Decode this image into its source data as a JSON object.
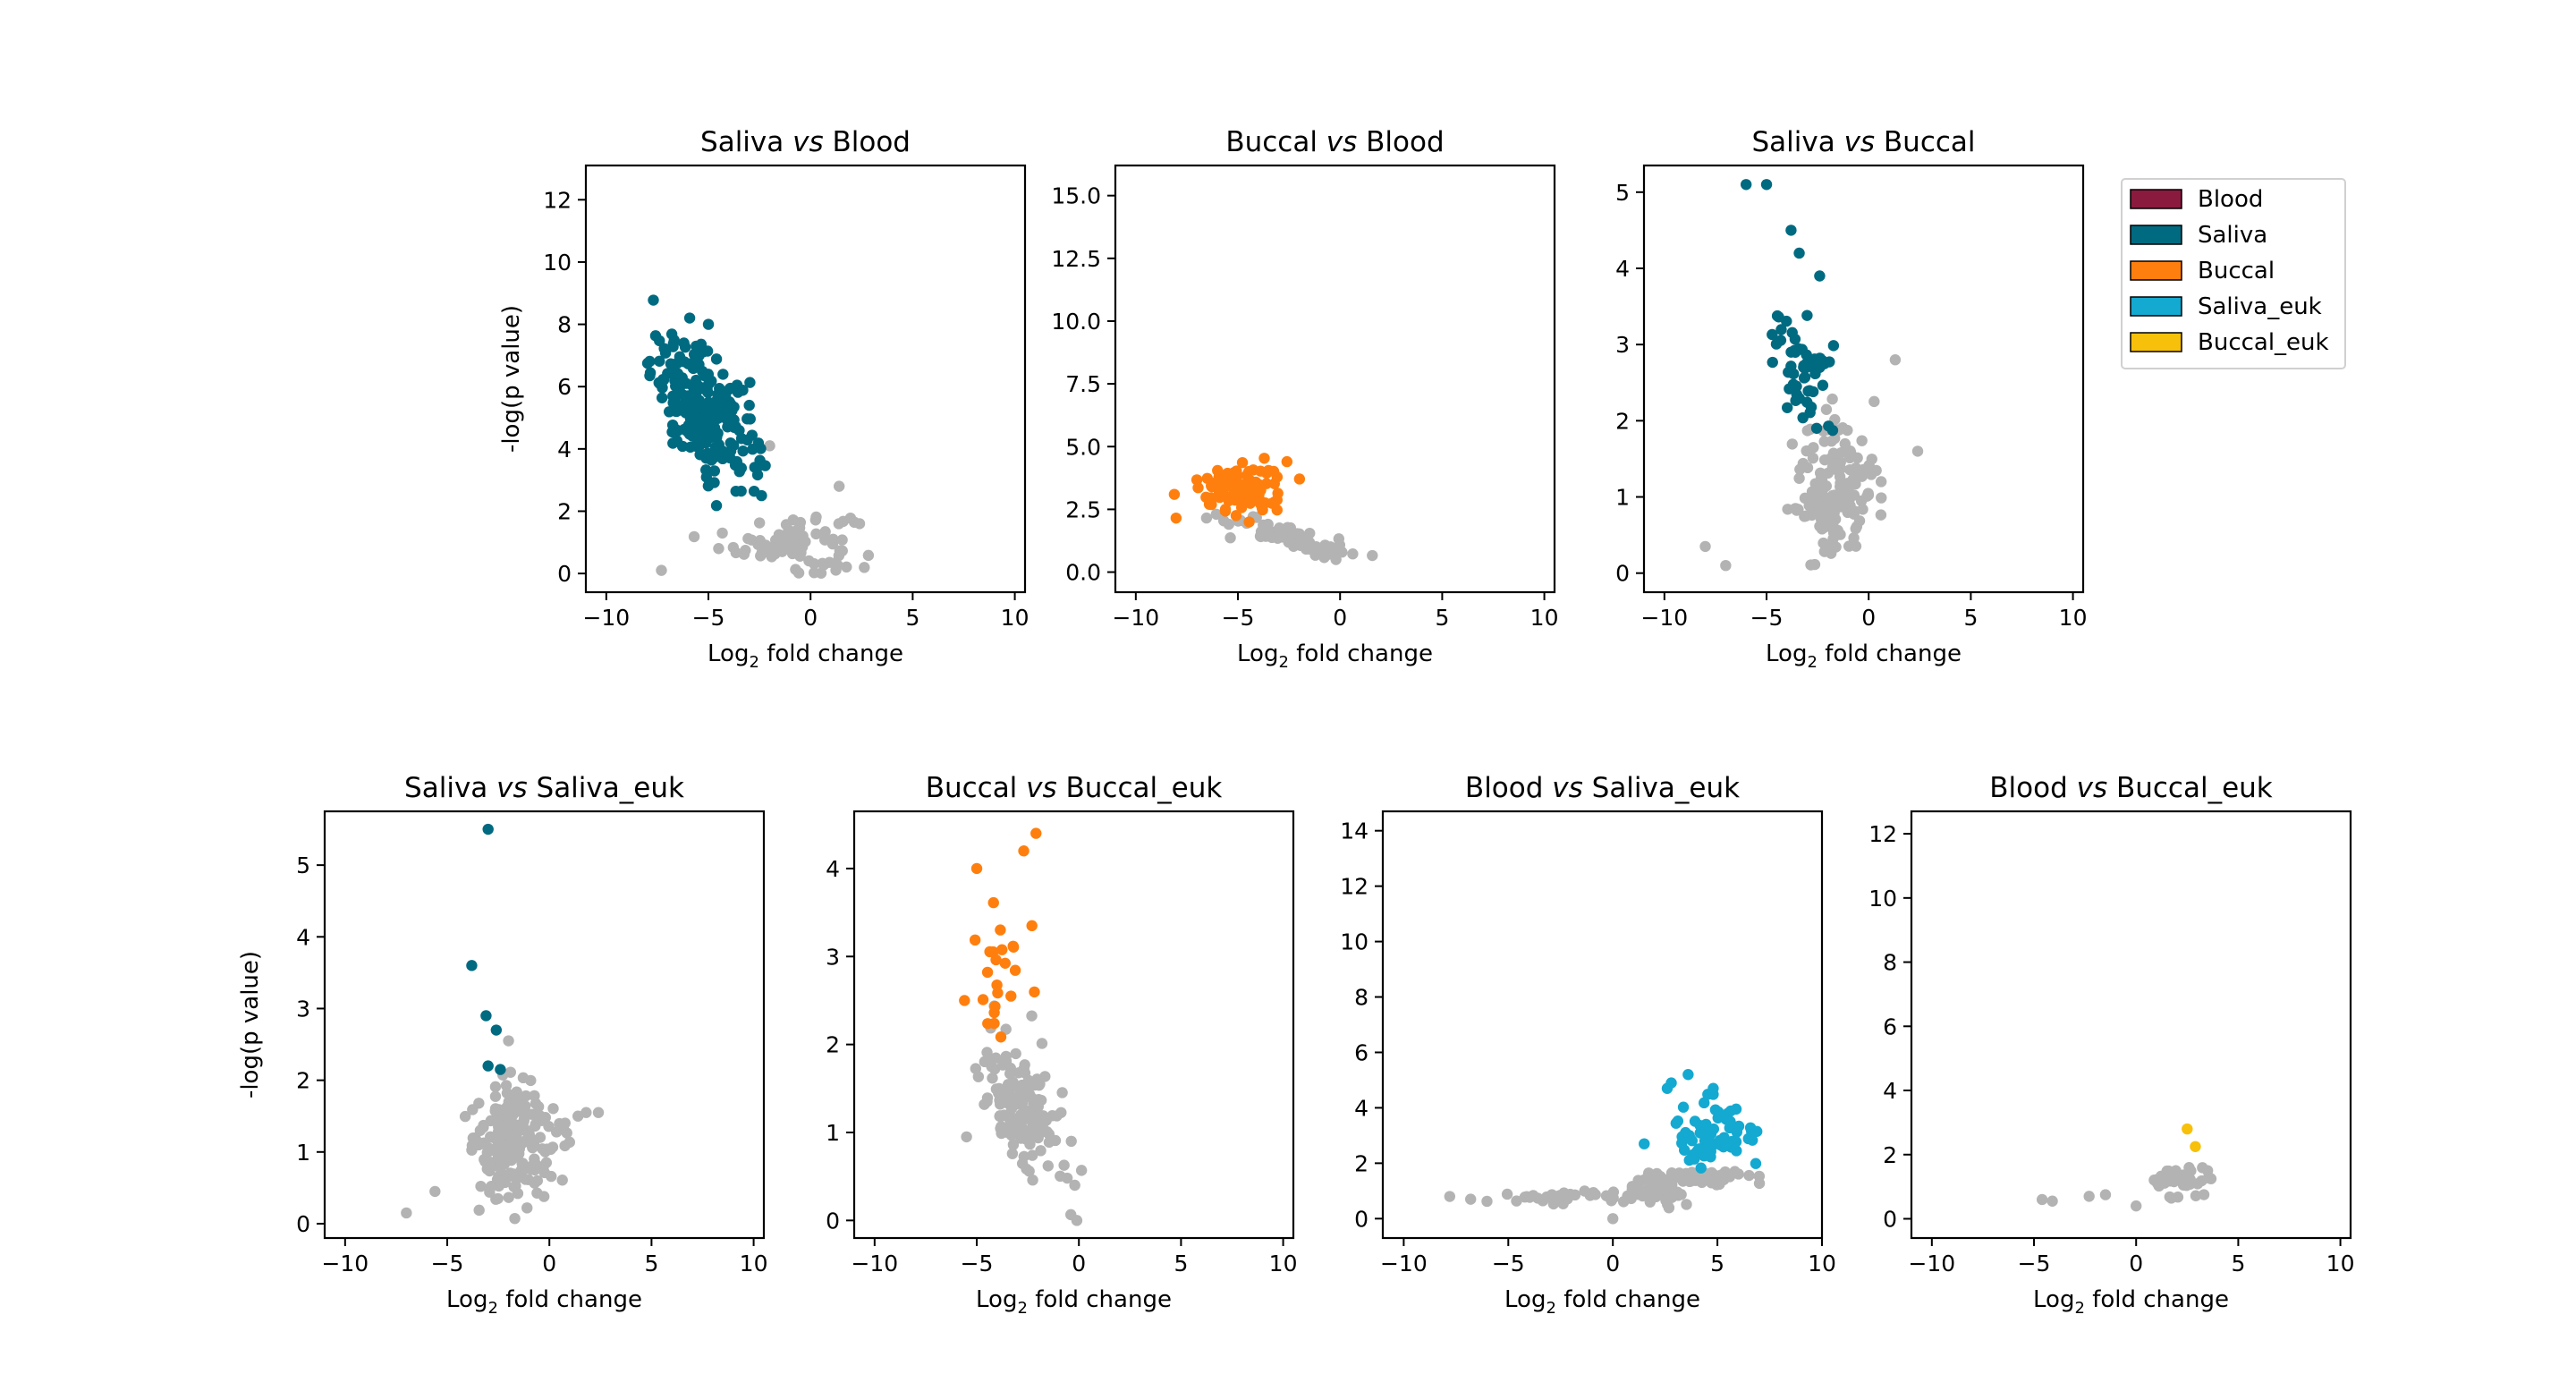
{
  "figure": {
    "xlabel_main": "Log",
    "xlabel_sub": "2",
    "xlabel_rest": " fold change",
    "ylabel": "-log(p value)",
    "vs_word": "vs"
  },
  "legend": {
    "placement": "right of top row",
    "entries": [
      {
        "label": "Blood",
        "color": "#8b1a3f"
      },
      {
        "label": "Saliva",
        "color": "#006a80"
      },
      {
        "label": "Buccal",
        "color": "#ff7f0e"
      },
      {
        "label": "Saliva_euk",
        "color": "#14a9d0"
      },
      {
        "label": "Buccal_euk",
        "color": "#f7c00a"
      }
    ]
  },
  "colors": {
    "nonsig": "#b3b3b3"
  },
  "chart_data": [
    {
      "type": "scatter",
      "title_left": "Saliva",
      "title_right": "Blood",
      "xlabel": "Log2 fold change",
      "ylabel": "-log(p value)",
      "xlim": [
        -11,
        10.5
      ],
      "ylim": [
        -0.6,
        13.1
      ],
      "xticks": [
        -10,
        -5,
        0,
        5,
        10
      ],
      "yticks": [
        0,
        2,
        4,
        6,
        8,
        10,
        12
      ],
      "sig_color": "#006a80",
      "clusters": [
        {
          "group": "sig",
          "cx": -5.2,
          "cy": 5.2,
          "sx": 1.3,
          "sy": 0.9,
          "n": 230,
          "tilt": -0.45
        },
        {
          "group": "nonsig",
          "cx": -0.8,
          "cy": 1.0,
          "sx": 1.4,
          "sy": 0.5,
          "n": 90,
          "tilt": 0
        }
      ],
      "points": [
        {
          "x": -5.0,
          "y": 8.0,
          "group": "sig"
        },
        {
          "x": -6.2,
          "y": 7.4,
          "group": "sig"
        },
        {
          "x": -5.6,
          "y": 7.3,
          "group": "sig"
        },
        {
          "x": -3.0,
          "y": 5.4,
          "group": "sig"
        },
        {
          "x": -2.4,
          "y": 2.5,
          "group": "sig"
        },
        {
          "x": -2.0,
          "y": 4.1,
          "group": "nonsig"
        },
        {
          "x": 1.4,
          "y": 2.8,
          "group": "nonsig"
        },
        {
          "x": 2.4,
          "y": 1.6,
          "group": "nonsig"
        },
        {
          "x": -4.5,
          "y": 0.8,
          "group": "nonsig"
        },
        {
          "x": -7.3,
          "y": 0.1,
          "group": "nonsig"
        }
      ]
    },
    {
      "type": "scatter",
      "title_left": "Buccal",
      "title_right": "Blood",
      "xlabel": "Log2 fold change",
      "ylabel": "",
      "xlim": [
        -11,
        10.5
      ],
      "ylim": [
        -0.8,
        16.2
      ],
      "xticks": [
        -10,
        -5,
        0,
        5,
        10
      ],
      "yticks": [
        0.0,
        2.5,
        5.0,
        7.5,
        10.0,
        12.5,
        15.0
      ],
      "ytick_labels": [
        "0.0",
        "2.5",
        "5.0",
        "7.5",
        "10.0",
        "12.5",
        "15.0"
      ],
      "sig_color": "#ff7f0e",
      "clusters": [
        {
          "group": "sig",
          "cx": -4.8,
          "cy": 3.3,
          "sx": 1.0,
          "sy": 0.5,
          "n": 110,
          "tilt": 0
        },
        {
          "group": "nonsig",
          "cx": -2.5,
          "cy": 1.4,
          "sx": 1.6,
          "sy": 0.25,
          "n": 60,
          "tilt": -0.25
        }
      ],
      "points": [
        {
          "x": -2.6,
          "y": 4.4,
          "group": "sig"
        },
        {
          "x": -6.4,
          "y": 2.7,
          "group": "sig"
        },
        {
          "x": -0.2,
          "y": 0.5,
          "group": "nonsig"
        },
        {
          "x": -0.6,
          "y": 0.7,
          "group": "nonsig"
        }
      ]
    },
    {
      "type": "scatter",
      "title_left": "Saliva",
      "title_right": "Buccal",
      "xlabel": "Log2 fold change",
      "ylabel": "",
      "xlim": [
        -11,
        10.5
      ],
      "ylim": [
        -0.25,
        5.35
      ],
      "xticks": [
        -10,
        -5,
        0,
        5,
        10
      ],
      "yticks": [
        0,
        1,
        2,
        3,
        4,
        5
      ],
      "sig_color": "#006a80",
      "clusters": [
        {
          "group": "sig",
          "cx": -3.3,
          "cy": 2.6,
          "sx": 0.8,
          "sy": 0.4,
          "n": 55,
          "tilt": 0
        },
        {
          "group": "nonsig",
          "cx": -1.6,
          "cy": 1.1,
          "sx": 1.0,
          "sy": 0.45,
          "n": 170,
          "tilt": 0
        }
      ],
      "points": [
        {
          "x": -6.0,
          "y": 5.1,
          "group": "sig"
        },
        {
          "x": -5.0,
          "y": 5.1,
          "group": "sig"
        },
        {
          "x": -3.8,
          "y": 4.5,
          "group": "sig"
        },
        {
          "x": -3.4,
          "y": 4.2,
          "group": "sig"
        },
        {
          "x": -2.4,
          "y": 3.9,
          "group": "sig"
        },
        {
          "x": 1.3,
          "y": 2.8,
          "group": "nonsig"
        },
        {
          "x": 2.4,
          "y": 1.6,
          "group": "nonsig"
        },
        {
          "x": -8.0,
          "y": 0.35,
          "group": "nonsig"
        },
        {
          "x": -7.0,
          "y": 0.1,
          "group": "nonsig"
        }
      ]
    },
    {
      "type": "scatter",
      "title_left": "Saliva",
      "title_right": "Saliva_euk",
      "xlabel": "Log2 fold change",
      "ylabel": "-log(p value)",
      "xlim": [
        -11,
        10.5
      ],
      "ylim": [
        -0.2,
        5.75
      ],
      "xticks": [
        -10,
        -5,
        0,
        5,
        10
      ],
      "yticks": [
        0,
        1,
        2,
        3,
        4,
        5
      ],
      "sig_color": "#006a80",
      "clusters": [
        {
          "group": "nonsig",
          "cx": -1.8,
          "cy": 1.1,
          "sx": 1.0,
          "sy": 0.4,
          "n": 220,
          "tilt": 0
        }
      ],
      "points": [
        {
          "x": -3.0,
          "y": 5.5,
          "group": "sig"
        },
        {
          "x": -3.8,
          "y": 3.6,
          "group": "sig"
        },
        {
          "x": -3.1,
          "y": 2.9,
          "group": "sig"
        },
        {
          "x": -2.6,
          "y": 2.7,
          "group": "sig"
        },
        {
          "x": -3.0,
          "y": 2.2,
          "group": "sig"
        },
        {
          "x": -2.4,
          "y": 2.15,
          "group": "sig"
        },
        {
          "x": -2.0,
          "y": 2.55,
          "group": "nonsig"
        },
        {
          "x": 1.8,
          "y": 1.55,
          "group": "nonsig"
        },
        {
          "x": 2.4,
          "y": 1.55,
          "group": "nonsig"
        },
        {
          "x": 1.4,
          "y": 1.5,
          "group": "nonsig"
        },
        {
          "x": -7.0,
          "y": 0.15,
          "group": "nonsig"
        },
        {
          "x": -5.6,
          "y": 0.45,
          "group": "nonsig"
        }
      ]
    },
    {
      "type": "scatter",
      "title_left": "Buccal",
      "title_right": "Buccal_euk",
      "xlabel": "Log2 fold change",
      "ylabel": "",
      "xlim": [
        -11,
        10.5
      ],
      "ylim": [
        -0.2,
        4.65
      ],
      "xticks": [
        -10,
        -5,
        0,
        5,
        10
      ],
      "yticks": [
        0,
        1,
        2,
        3,
        4
      ],
      "sig_color": "#ff7f0e",
      "clusters": [
        {
          "group": "sig",
          "cx": -4.0,
          "cy": 2.8,
          "sx": 0.7,
          "sy": 0.45,
          "n": 22,
          "tilt": 0
        },
        {
          "group": "nonsig",
          "cx": -2.8,
          "cy": 1.3,
          "sx": 1.0,
          "sy": 0.35,
          "n": 150,
          "tilt": -0.2
        }
      ],
      "points": [
        {
          "x": -2.1,
          "y": 4.4,
          "group": "sig"
        },
        {
          "x": -2.7,
          "y": 4.2,
          "group": "sig"
        },
        {
          "x": -5.0,
          "y": 4.0,
          "group": "sig"
        },
        {
          "x": -2.3,
          "y": 3.35,
          "group": "sig"
        },
        {
          "x": -5.6,
          "y": 2.5,
          "group": "sig"
        },
        {
          "x": -0.1,
          "y": 0.0,
          "group": "nonsig"
        },
        {
          "x": -0.2,
          "y": 0.4,
          "group": "nonsig"
        },
        {
          "x": -5.5,
          "y": 0.95,
          "group": "nonsig"
        }
      ]
    },
    {
      "type": "scatter",
      "title_left": "Blood",
      "title_right": "Saliva_euk",
      "xlabel": "Log2 fold change",
      "ylabel": "",
      "xlim": [
        -11,
        10
      ],
      "ylim": [
        -0.7,
        14.7
      ],
      "xticks": [
        -10,
        -5,
        0,
        5,
        10
      ],
      "yticks": [
        0,
        2,
        4,
        6,
        8,
        10,
        12,
        14
      ],
      "sig_color": "#14a9d0",
      "clusters": [
        {
          "group": "sig",
          "cx": 4.8,
          "cy": 3.1,
          "sx": 0.9,
          "sy": 0.5,
          "n": 75,
          "tilt": 0
        },
        {
          "group": "nonsig",
          "cx": 4.0,
          "cy": 1.5,
          "sx": 1.2,
          "sy": 0.12,
          "n": 70,
          "tilt": 0
        },
        {
          "group": "nonsig",
          "cx": 1.8,
          "cy": 1.0,
          "sx": 0.9,
          "sy": 0.3,
          "n": 40,
          "tilt": 0
        },
        {
          "group": "nonsig",
          "cx": -2.5,
          "cy": 0.75,
          "sx": 1.6,
          "sy": 0.12,
          "n": 30,
          "tilt": 0
        }
      ],
      "points": [
        {
          "x": 3.6,
          "y": 5.2,
          "group": "sig"
        },
        {
          "x": 2.6,
          "y": 4.7,
          "group": "sig"
        },
        {
          "x": 4.8,
          "y": 4.7,
          "group": "sig"
        },
        {
          "x": 1.5,
          "y": 2.7,
          "group": "sig"
        },
        {
          "x": -7.8,
          "y": 0.8,
          "group": "nonsig"
        },
        {
          "x": -6.8,
          "y": 0.7,
          "group": "nonsig"
        },
        {
          "x": 0.0,
          "y": 0.0,
          "group": "nonsig"
        }
      ]
    },
    {
      "type": "scatter",
      "title_left": "Blood",
      "title_right": "Buccal_euk",
      "xlabel": "Log2 fold change",
      "ylabel": "",
      "xlim": [
        -11,
        10.5
      ],
      "ylim": [
        -0.6,
        12.7
      ],
      "xticks": [
        -10,
        -5,
        0,
        5,
        10
      ],
      "yticks": [
        0,
        2,
        4,
        6,
        8,
        10,
        12
      ],
      "sig_color": "#f7c00a",
      "clusters": [
        {
          "group": "nonsig",
          "cx": 2.2,
          "cy": 1.2,
          "sx": 0.8,
          "sy": 0.25,
          "n": 40,
          "tilt": 0
        }
      ],
      "points": [
        {
          "x": 2.5,
          "y": 2.8,
          "group": "sig"
        },
        {
          "x": 2.9,
          "y": 2.25,
          "group": "sig"
        },
        {
          "x": -4.6,
          "y": 0.6,
          "group": "nonsig"
        },
        {
          "x": -4.1,
          "y": 0.55,
          "group": "nonsig"
        },
        {
          "x": -2.3,
          "y": 0.7,
          "group": "nonsig"
        },
        {
          "x": -1.5,
          "y": 0.75,
          "group": "nonsig"
        },
        {
          "x": 0.0,
          "y": 0.4,
          "group": "nonsig"
        },
        {
          "x": 3.5,
          "y": 1.5,
          "group": "nonsig"
        }
      ]
    }
  ]
}
